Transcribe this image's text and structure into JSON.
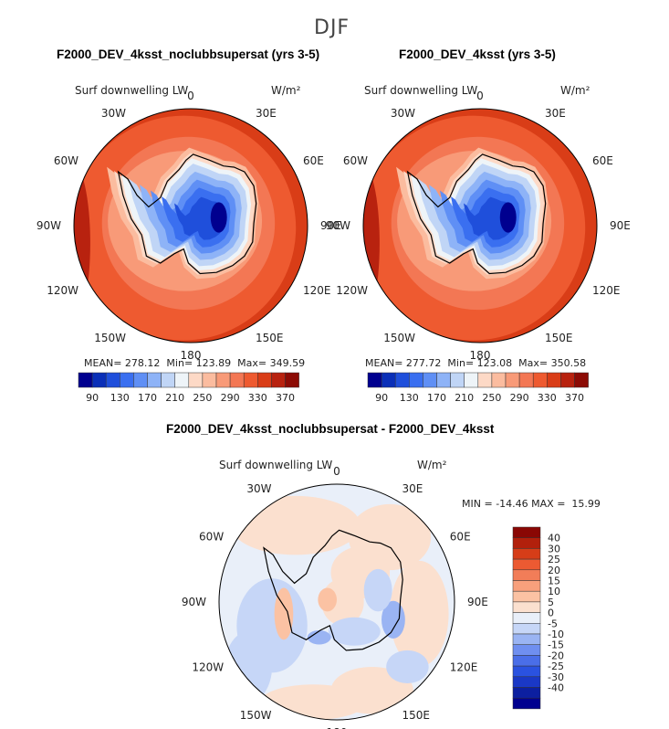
{
  "chart_data": {
    "type": "heatmap",
    "title": "DJF",
    "projection": "south polar stereographic",
    "colors": {
      "abs_levels": [
        "#00008f",
        "#0a2fb8",
        "#1f4fdb",
        "#3a6ff0",
        "#5f8ff5",
        "#8eb3f7",
        "#c0d5f6",
        "#eef4f8",
        "#fdd9c6",
        "#fbbc9f",
        "#f89a78",
        "#f37754",
        "#ee5a30",
        "#d93d17",
        "#b8220f",
        "#8c0b05"
      ],
      "diff_levels": [
        "#00008f",
        "#0c1fa0",
        "#1a38c6",
        "#2a52e0",
        "#4a6ee8",
        "#6f8ff0",
        "#9ab4f3",
        "#c6d6f7",
        "#e9eff9",
        "#fbe0cf",
        "#fbc2a3",
        "#f8a07c",
        "#f27d58",
        "#ec5a32",
        "#d63d18",
        "#b2200c",
        "#8a0704"
      ],
      "land_outline": "#000000"
    },
    "panels": [
      {
        "name": "F2000_DEV_4ksst_noclubbsupersat (yrs 3-5)",
        "variable": "Surf downwelling LW",
        "units": "W/m²",
        "mean": "278.12",
        "min": "123.89",
        "max": "349.59",
        "levels": [
          90,
          130,
          170,
          210,
          250,
          290,
          330,
          370
        ]
      },
      {
        "name": "F2000_DEV_4ksst (yrs 3-5)",
        "variable": "Surf downwelling LW",
        "units": "W/m²",
        "mean": "277.72",
        "min": "123.08",
        "max": "350.58",
        "levels": [
          90,
          130,
          170,
          210,
          250,
          290,
          330,
          370
        ]
      },
      {
        "name": "F2000_DEV_4ksst_noclubbsupersat - F2000_DEV_4ksst",
        "variable": "Surf downwelling LW",
        "units": "W/m²",
        "min": "-14.46",
        "max": "15.99",
        "levels": [
          40,
          30,
          25,
          20,
          15,
          10,
          5,
          0,
          -5,
          -10,
          -15,
          -20,
          -25,
          -30,
          -40
        ]
      }
    ],
    "longitude_labels": [
      "0",
      "30E",
      "60E",
      "90E",
      "120E",
      "150E",
      "180",
      "150W",
      "120W",
      "90W",
      "60W",
      "30W"
    ]
  },
  "text": {
    "mean_prefix": "MEAN=",
    "min_prefix": "Min=",
    "max_prefix": "Max=",
    "diff_min_prefix": "MIN =",
    "diff_max_prefix": "MAX ="
  }
}
